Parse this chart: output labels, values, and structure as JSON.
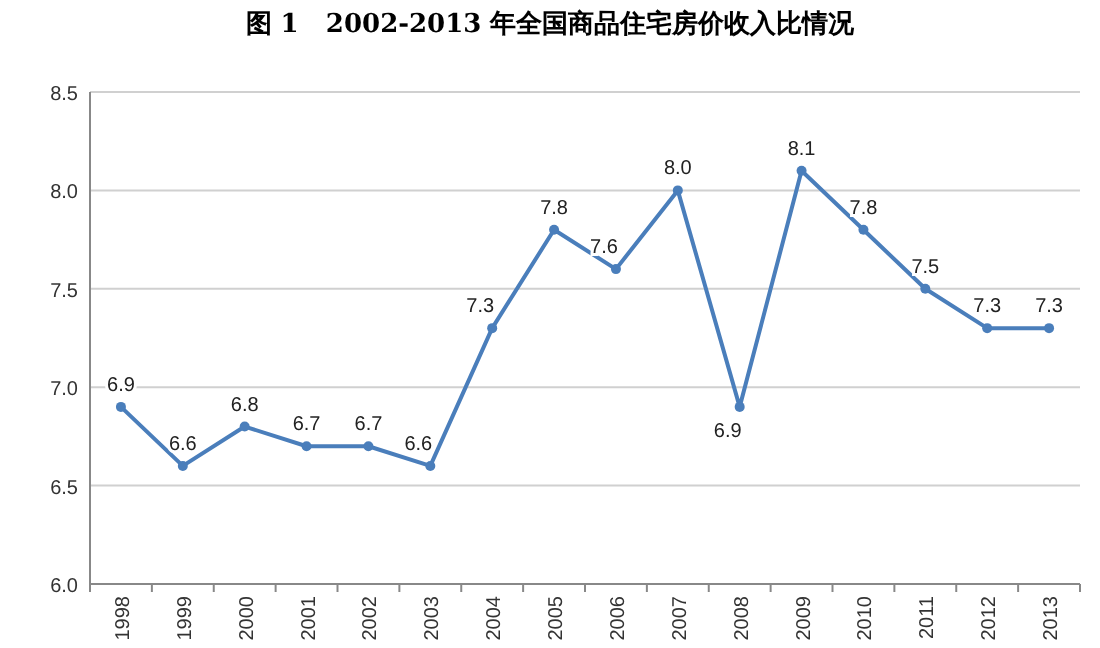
{
  "chart_data": {
    "type": "line",
    "title": "图 1   2002-2013 年全国商品住宅房价收入比情况",
    "categories": [
      "1998",
      "1999",
      "2000",
      "2001",
      "2002",
      "2003",
      "2004",
      "2005",
      "2006",
      "2007",
      "2008",
      "2009",
      "2010",
      "2011",
      "2012",
      "2013"
    ],
    "series": [
      {
        "color": "#4a7ebb",
        "values": [
          6.9,
          6.6,
          6.8,
          6.7,
          6.7,
          6.6,
          7.3,
          7.8,
          7.6,
          8.0,
          6.9,
          8.1,
          7.8,
          7.5,
          7.3,
          7.3
        ],
        "value_labels": [
          "6.9",
          "6.6",
          "6.8",
          "6.7",
          "6.7",
          "6.6",
          "7.3",
          "7.8",
          "7.6",
          "8.0",
          "6.9",
          "8.1",
          "7.8",
          "7.5",
          "7.3",
          "7.3"
        ]
      }
    ],
    "ylim": [
      6.0,
      8.5
    ],
    "yticks": [
      {
        "value": 6.0,
        "label": "6.0"
      },
      {
        "value": 6.5,
        "label": "6.5"
      },
      {
        "value": 7.0,
        "label": "7.0"
      },
      {
        "value": 7.5,
        "label": "7.5"
      },
      {
        "value": 8.0,
        "label": "8.0"
      },
      {
        "value": 8.5,
        "label": "8.5"
      }
    ],
    "grid": "y",
    "marker": "circle",
    "line_style": "solid"
  }
}
